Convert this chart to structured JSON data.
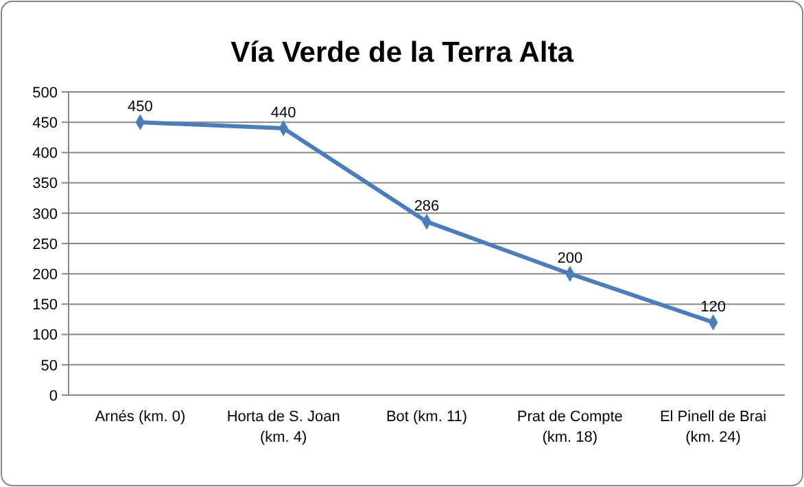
{
  "chart_data": {
    "type": "line",
    "title": "Vía Verde de la Terra Alta",
    "categories": [
      "Arnés (km. 0)",
      "Horta de S. Joan (km. 4)",
      "Bot (km. 11)",
      "Prat de Compte (km. 18)",
      "El Pinell de Brai (km. 24)"
    ],
    "series": [
      {
        "color": "#4a7ebb",
        "values": [
          450,
          440,
          286,
          200,
          120
        ]
      }
    ],
    "ylim": [
      0,
      500
    ],
    "yticks": [
      0,
      50,
      100,
      150,
      200,
      250,
      300,
      350,
      400,
      450,
      500
    ],
    "grid": "y",
    "marker": "diamond",
    "line_style": "solid",
    "data_labels": true
  }
}
